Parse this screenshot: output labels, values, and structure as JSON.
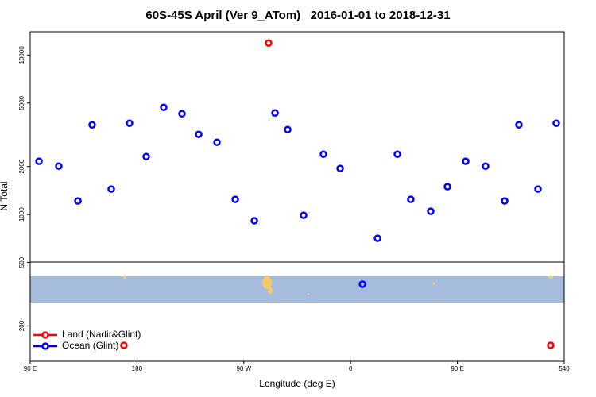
{
  "chart_data": {
    "type": "scatter",
    "title": "60S-45S April (Ver 9_ATom)   2016-01-01 to 2018-12-31",
    "xlabel": "Longitude (deg E)",
    "ylabel": "N Total",
    "xlim": [
      90,
      540
    ],
    "xticks": [
      {
        "value": 90,
        "label": "90 E"
      },
      180,
      {
        "value": 270,
        "label": "90 W"
      },
      {
        "value": 360,
        "label": "0"
      },
      {
        "value": 450,
        "label": "90 E"
      },
      540
    ],
    "ylim": [
      120,
      14000
    ],
    "ylog": true,
    "yticks": [
      200,
      500,
      1000,
      2000,
      5000,
      10000
    ],
    "legend": "bottomleft",
    "series": [
      {
        "name": "Land (Nadir&Glint)",
        "color": "#ff0000",
        "x": [
          290.9,
          169.0,
          528.6
        ],
        "values": [
          11880,
          151,
          151
        ]
      },
      {
        "name": "Ocean (Glint)",
        "color": "#0000ff",
        "x": [
          97.4,
          114.1,
          130.2,
          142.2,
          158.3,
          173.7,
          187.8,
          202.5,
          217.9,
          232.0,
          247.4,
          262.8,
          278.9,
          296.3,
          307.0,
          320.4,
          337.1,
          351.2,
          370.0,
          382.7,
          399.4,
          410.7,
          427.5,
          441.6,
          457.0,
          473.7,
          489.8,
          501.8,
          517.9,
          533.3
        ],
        "values": [
          2155,
          2010,
          1215,
          3650,
          1443,
          3733,
          2307,
          4697,
          4285,
          3179,
          2837,
          1243,
          913,
          4335,
          3407,
          989,
          2388,
          1944,
          365,
          709,
          2388,
          1243,
          1047,
          1493,
          2155,
          2010,
          1215,
          3650,
          1443,
          3733
        ]
      }
    ]
  }
}
